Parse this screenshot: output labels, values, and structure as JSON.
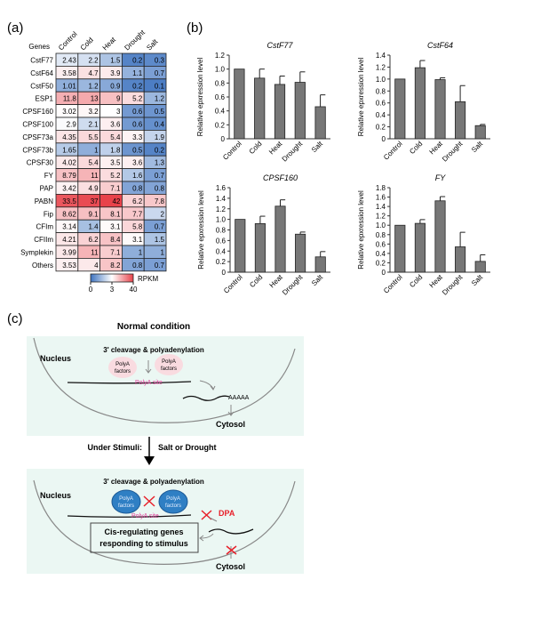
{
  "panel_labels": {
    "a": "(a)",
    "b": "(b)",
    "c": "(c)"
  },
  "chart_data": [
    {
      "type": "heatmap",
      "row_header": "Genes",
      "columns": [
        "Control",
        "Cold",
        "Heat",
        "Drought",
        "Salt"
      ],
      "rows": [
        "CstF77",
        "CstF64",
        "CstF50",
        "ESP1",
        "CPSF160",
        "CPSF100",
        "CPSF73a",
        "CPSF73b",
        "CPSF30",
        "FY",
        "PAP",
        "PABN",
        "Fip",
        "CFIm",
        "CFIIm",
        "Symplekin",
        "Others"
      ],
      "values": [
        [
          "2.43",
          "2.2",
          "1.5",
          "0.2",
          "0.3"
        ],
        [
          "3.58",
          "4.7",
          "3.9",
          "1.1",
          "0.7"
        ],
        [
          "1.01",
          "1.2",
          "0.9",
          "0.2",
          "0.1"
        ],
        [
          "11.8",
          "13",
          "9",
          "5.2",
          "1.2"
        ],
        [
          "3.02",
          "3.2",
          "3",
          "0.6",
          "0.5"
        ],
        [
          "2.9",
          "2.1",
          "3.6",
          "0.6",
          "0.4"
        ],
        [
          "4.35",
          "5.5",
          "5.4",
          "3.3",
          "1.9"
        ],
        [
          "1.65",
          "1",
          "1.8",
          "0.5",
          "0.2"
        ],
        [
          "4.02",
          "5.4",
          "3.5",
          "3.6",
          "1.3"
        ],
        [
          "8.79",
          "11",
          "5.2",
          "1.6",
          "0.7"
        ],
        [
          "3.42",
          "4.9",
          "7.1",
          "0.8",
          "0.8"
        ],
        [
          "33.5",
          "37",
          "42",
          "6.2",
          "7.8"
        ],
        [
          "8.62",
          "9.1",
          "8.1",
          "7.7",
          "2"
        ],
        [
          "3.14",
          "1.4",
          "3.1",
          "5.8",
          "0.7"
        ],
        [
          "4.21",
          "6.2",
          "8.4",
          "3.1",
          "1.5"
        ],
        [
          "3.99",
          "11",
          "7.1",
          "1",
          "1"
        ],
        [
          "3.53",
          "4",
          "8.2",
          "0.8",
          "0.7"
        ]
      ],
      "colorbar": {
        "label": "RPKM",
        "ticks": [
          "0",
          "3",
          "40"
        ],
        "colors": {
          "low": "#3f74c0",
          "mid": "#ffffff",
          "high": "#e8424a"
        }
      }
    },
    {
      "type": "bar",
      "title": "CstF77",
      "ylabel": "Relative epxression level",
      "categories": [
        "Control",
        "Cold",
        "Heat",
        "Drought",
        "Salt"
      ],
      "values": [
        1.0,
        0.87,
        0.78,
        0.81,
        0.46
      ],
      "errors": [
        0,
        0.13,
        0.12,
        0.15,
        0.17
      ],
      "ylim": [
        0,
        1.2
      ],
      "yticks": [
        "0",
        "0.2",
        "0.4",
        "0.6",
        "0.8",
        "1.0",
        "1.2"
      ]
    },
    {
      "type": "bar",
      "title": "CstF64",
      "ylabel": "Relative epxression level",
      "categories": [
        "Control",
        "Cold",
        "Heat",
        "Drought",
        "Salt"
      ],
      "values": [
        1.0,
        1.19,
        0.99,
        0.62,
        0.22
      ],
      "errors": [
        0,
        0.12,
        0.03,
        0.27,
        0.02
      ],
      "ylim": [
        0,
        1.4
      ],
      "yticks": [
        "0",
        "0.2",
        "0.4",
        "0.6",
        "0.8",
        "1.0",
        "1.2",
        "1.4"
      ]
    },
    {
      "type": "bar",
      "title": "CPSF160",
      "ylabel": "Relative epxression level",
      "categories": [
        "Control",
        "Cold",
        "Heat",
        "Drought",
        "Salt"
      ],
      "values": [
        1.0,
        0.92,
        1.25,
        0.72,
        0.29
      ],
      "errors": [
        0,
        0.14,
        0.12,
        0.04,
        0.1
      ],
      "ylim": [
        0,
        1.6
      ],
      "yticks": [
        "0",
        "0.2",
        "0.4",
        "0.6",
        "0.8",
        "1.0",
        "1.2",
        "1.4",
        "1.6"
      ]
    },
    {
      "type": "bar",
      "title": "FY",
      "ylabel": "Relative epxression level",
      "categories": [
        "Control",
        "Cold",
        "Heat",
        "Drought",
        "Salt"
      ],
      "values": [
        1.0,
        1.04,
        1.52,
        0.54,
        0.23
      ],
      "errors": [
        0,
        0.08,
        0.09,
        0.31,
        0.14
      ],
      "ylim": [
        0,
        1.8
      ],
      "yticks": [
        "0",
        "0.2",
        "0.4",
        "0.6",
        "0.8",
        "1.0",
        "1.2",
        "1.4",
        "1.6",
        "1.8"
      ]
    }
  ],
  "diagram": {
    "normal_title": "Normal condition",
    "process": "3' cleavage & polyadenylation",
    "nucleus": "Nucleus",
    "cytosol": "Cytosol",
    "factor_line1": "PolyA",
    "factor_line2": "factors",
    "polya_site": "PolyA site",
    "polya_tail": "AAAAA",
    "stimuli_label": "Under Stimuli:",
    "stimuli_type": "Salt or Drought",
    "dpa": "DPA",
    "cis_line1": "Cis-regulating genes",
    "cis_line2": "responding to stimulus",
    "colors": {
      "background": "#ebf7f3",
      "pink_factor": "#f9dbe0",
      "blue_factor": "#2f7fc4",
      "polya_site": "#e0409a",
      "cross": "#e8202a"
    }
  }
}
